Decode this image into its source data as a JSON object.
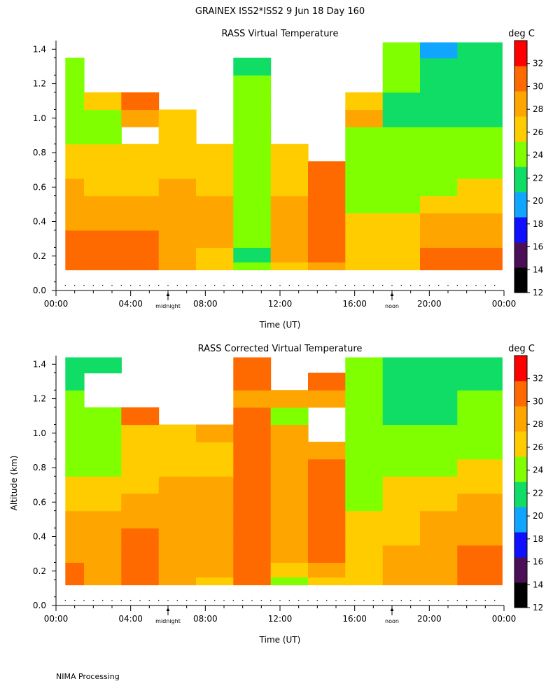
{
  "header": {
    "title": "GRAINEX ISS2*ISS2   9 Jun 18 Day 160"
  },
  "footer": {
    "note": "NIMA Processing"
  },
  "colors": {
    "bands": [
      "#000000",
      "#4b0f58",
      "#1010ff",
      "#10a5ff",
      "#10dd66",
      "#80ff00",
      "#ffcc00",
      "#ffa500",
      "#ff6a00",
      "#ff0000"
    ],
    "missing": "#ffffff"
  },
  "colorbar": {
    "title": "deg C",
    "ticks": [
      "12",
      "14",
      "16",
      "18",
      "20",
      "22",
      "24",
      "26",
      "28",
      "30",
      "32"
    ]
  },
  "axes": {
    "x_ticks": [
      "00:00",
      "04:00",
      "08:00",
      "12:00",
      "16:00",
      "20:00",
      "00:00"
    ],
    "y_ticks": [
      "0.0",
      "0.2",
      "0.4",
      "0.6",
      "0.8",
      "1.0",
      "1.2",
      "1.4"
    ],
    "x_markers": [
      "midnight",
      "noon"
    ]
  },
  "chart_data": [
    {
      "type": "heatmap",
      "title": "RASS Virtual Temperature",
      "xlabel": "Time (UT)",
      "ylabel": "",
      "colorbar_label": "deg C",
      "xlim": [
        0,
        24
      ],
      "ylim": [
        0,
        1.45
      ],
      "clim": [
        12,
        34
      ],
      "x": [
        0.5,
        2.5,
        4.5,
        6.5,
        8.5,
        10.5,
        12.5,
        14.5,
        16.5,
        18.5,
        20.5,
        22.5
      ],
      "y": [
        0.13,
        0.2,
        0.3,
        0.4,
        0.5,
        0.6,
        0.7,
        0.8,
        0.9,
        1.0,
        1.1,
        1.2,
        1.3,
        1.4
      ],
      "values": [
        [
          31,
          31,
          31,
          29,
          27,
          23,
          27,
          29,
          27,
          26,
          30,
          31
        ],
        [
          31,
          31,
          31,
          29,
          27,
          22,
          28,
          31,
          27,
          26,
          31,
          31
        ],
        [
          31,
          31,
          31,
          29,
          28,
          23,
          28,
          31,
          27,
          26,
          28,
          29
        ],
        [
          29,
          29,
          29,
          29,
          28,
          24,
          28,
          31,
          26,
          26,
          28,
          29
        ],
        [
          29,
          29,
          29,
          29,
          28,
          24,
          28,
          31,
          25,
          25,
          26,
          27
        ],
        [
          29,
          27,
          27,
          29,
          27,
          25,
          27,
          31,
          25,
          25,
          25,
          26
        ],
        [
          27,
          27,
          27,
          27,
          26,
          25,
          27,
          31,
          24,
          24,
          24,
          25
        ],
        [
          26,
          27,
          26,
          27,
          26,
          23,
          26,
          null,
          24,
          23,
          23,
          24
        ],
        [
          25,
          25,
          null,
          27,
          null,
          24,
          null,
          null,
          23,
          23,
          23,
          23
        ],
        [
          24,
          25,
          28,
          27,
          null,
          24,
          null,
          null,
          28,
          22,
          22,
          22
        ],
        [
          23,
          27,
          31,
          null,
          null,
          24,
          null,
          null,
          27,
          22,
          22,
          22
        ],
        [
          23,
          null,
          null,
          null,
          null,
          24,
          null,
          null,
          null,
          23,
          22,
          22
        ],
        [
          23,
          null,
          null,
          null,
          null,
          22,
          null,
          null,
          null,
          23,
          21,
          21
        ],
        [
          null,
          null,
          null,
          null,
          null,
          null,
          null,
          null,
          null,
          23,
          20,
          21
        ]
      ]
    },
    {
      "type": "heatmap",
      "title": "RASS Corrected Virtual Temperature",
      "xlabel": "Time (UT)",
      "ylabel": "Altitude (km)",
      "colorbar_label": "deg C",
      "xlim": [
        0,
        24
      ],
      "ylim": [
        0,
        1.45
      ],
      "clim": [
        12,
        34
      ],
      "x": [
        0.5,
        2.5,
        4.5,
        6.5,
        8.5,
        10.5,
        12.5,
        14.5,
        16.5,
        18.5,
        20.5,
        22.5
      ],
      "y": [
        0.13,
        0.2,
        0.3,
        0.4,
        0.5,
        0.6,
        0.7,
        0.8,
        0.9,
        1.0,
        1.1,
        1.2,
        1.3,
        1.4
      ],
      "values": [
        [
          31,
          29,
          31,
          29,
          27,
          31,
          25,
          27,
          27,
          28,
          29,
          31
        ],
        [
          31,
          29,
          31,
          29,
          28,
          31,
          26,
          28,
          27,
          28,
          29,
          31
        ],
        [
          29,
          29,
          31,
          29,
          28,
          31,
          28,
          31,
          27,
          28,
          29,
          31
        ],
        [
          29,
          29,
          31,
          29,
          29,
          31,
          29,
          31,
          27,
          27,
          28,
          29
        ],
        [
          28,
          28,
          29,
          29,
          29,
          31,
          29,
          31,
          26,
          27,
          28,
          29
        ],
        [
          27,
          27,
          29,
          28,
          29,
          31,
          29,
          31,
          25,
          27,
          27,
          28
        ],
        [
          26,
          26,
          27,
          28,
          28,
          31,
          28,
          31,
          25,
          26,
          26,
          27
        ],
        [
          25,
          25,
          26,
          27,
          27,
          31,
          28,
          31,
          25,
          25,
          25,
          26
        ],
        [
          25,
          25,
          26,
          26,
          26,
          31,
          28,
          29,
          24,
          24,
          24,
          25
        ],
        [
          25,
          25,
          26,
          26,
          28,
          31,
          28,
          null,
          23,
          23,
          24,
          24
        ],
        [
          23,
          23,
          31,
          null,
          null,
          31,
          25,
          null,
          23,
          22,
          22,
          23
        ],
        [
          23,
          null,
          null,
          null,
          null,
          29,
          28,
          29,
          23,
          22,
          22,
          23
        ],
        [
          22,
          null,
          null,
          null,
          null,
          31,
          null,
          31,
          23,
          22,
          21,
          22
        ],
        [
          22,
          22,
          null,
          null,
          null,
          31,
          null,
          null,
          23,
          22,
          22,
          22
        ]
      ]
    }
  ]
}
